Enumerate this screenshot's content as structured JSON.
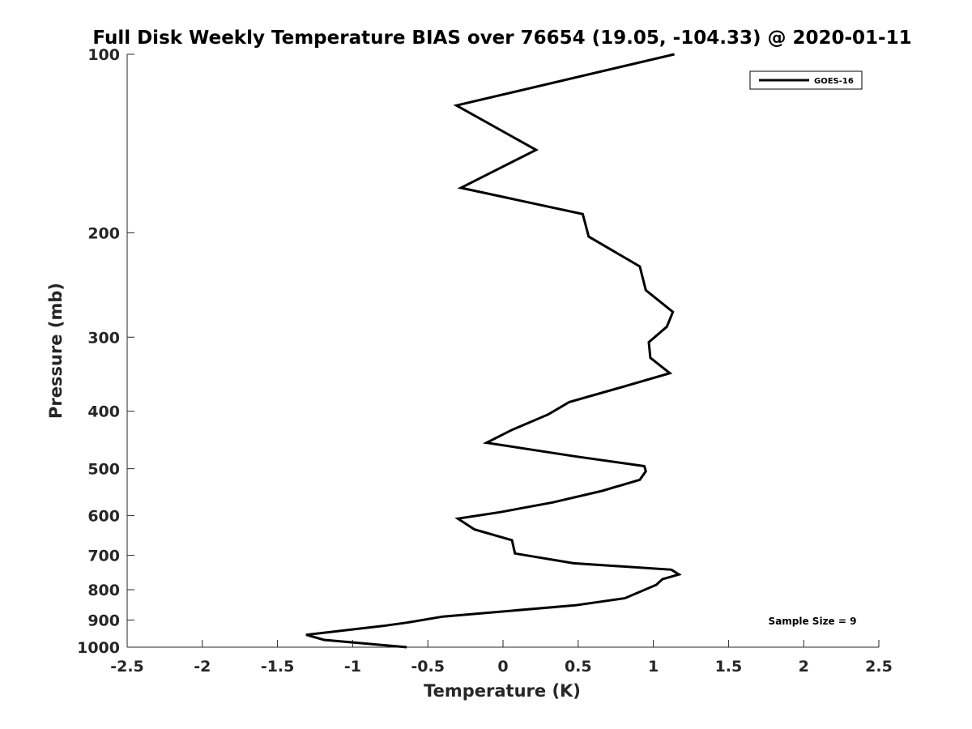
{
  "chart_data": {
    "type": "line",
    "title": "Full Disk Weekly Temperature BIAS over 76654 (19.05, -104.33) @ 2020-01-11",
    "xlabel": "Temperature (K)",
    "ylabel": "Pressure (mb)",
    "xlim": [
      -2.5,
      2.5
    ],
    "ylim": [
      1000,
      100
    ],
    "y_scale": "log",
    "y_reversed": true,
    "grid": false,
    "x_ticks": [
      -2.5,
      -2,
      -1.5,
      -1,
      -0.5,
      0,
      0.5,
      1,
      1.5,
      2,
      2.5
    ],
    "x_tick_labels": [
      "-2.5",
      "-2",
      "-1.5",
      "-1",
      "-0.5",
      "0",
      "0.5",
      "1",
      "1.5",
      "2",
      "2.5"
    ],
    "y_ticks": [
      100,
      200,
      300,
      400,
      500,
      600,
      700,
      800,
      900,
      1000
    ],
    "y_tick_labels": [
      "100",
      "200",
      "300",
      "400",
      "500",
      "600",
      "700",
      "800",
      "900",
      "1000"
    ],
    "legend": {
      "position": "top-right",
      "entries": [
        "GOES-16"
      ]
    },
    "annotation": "Sample Size = 9",
    "series": [
      {
        "name": "GOES-16",
        "color": "#000000",
        "points": [
          [
            1.14,
            100
          ],
          [
            -0.31,
            122
          ],
          [
            0.22,
            145
          ],
          [
            -0.28,
            168
          ],
          [
            0.53,
            186
          ],
          [
            0.57,
            203
          ],
          [
            0.91,
            228
          ],
          [
            0.95,
            250
          ],
          [
            1.13,
            272
          ],
          [
            1.09,
            288
          ],
          [
            0.97,
            306
          ],
          [
            0.98,
            325
          ],
          [
            1.11,
            345
          ],
          [
            0.76,
            366
          ],
          [
            0.44,
            386
          ],
          [
            0.3,
            405
          ],
          [
            0.06,
            430
          ],
          [
            -0.11,
            452
          ],
          [
            0.49,
            477
          ],
          [
            0.94,
            495
          ],
          [
            0.95,
            505
          ],
          [
            0.91,
            522
          ],
          [
            0.66,
            545
          ],
          [
            0.33,
            570
          ],
          [
            -0.02,
            592
          ],
          [
            -0.3,
            607
          ],
          [
            -0.19,
            633
          ],
          [
            0.06,
            660
          ],
          [
            0.07,
            678
          ],
          [
            0.08,
            695
          ],
          [
            0.47,
            722
          ],
          [
            1.12,
            740
          ],
          [
            1.17,
            754
          ],
          [
            1.06,
            768
          ],
          [
            1.02,
            785
          ],
          [
            0.81,
            827
          ],
          [
            0.48,
            850
          ],
          [
            -0.4,
            888
          ],
          [
            -0.64,
            909
          ],
          [
            -0.8,
            921
          ],
          [
            -1.31,
            953
          ],
          [
            -1.19,
            972
          ],
          [
            -0.64,
            1000
          ]
        ]
      }
    ]
  }
}
